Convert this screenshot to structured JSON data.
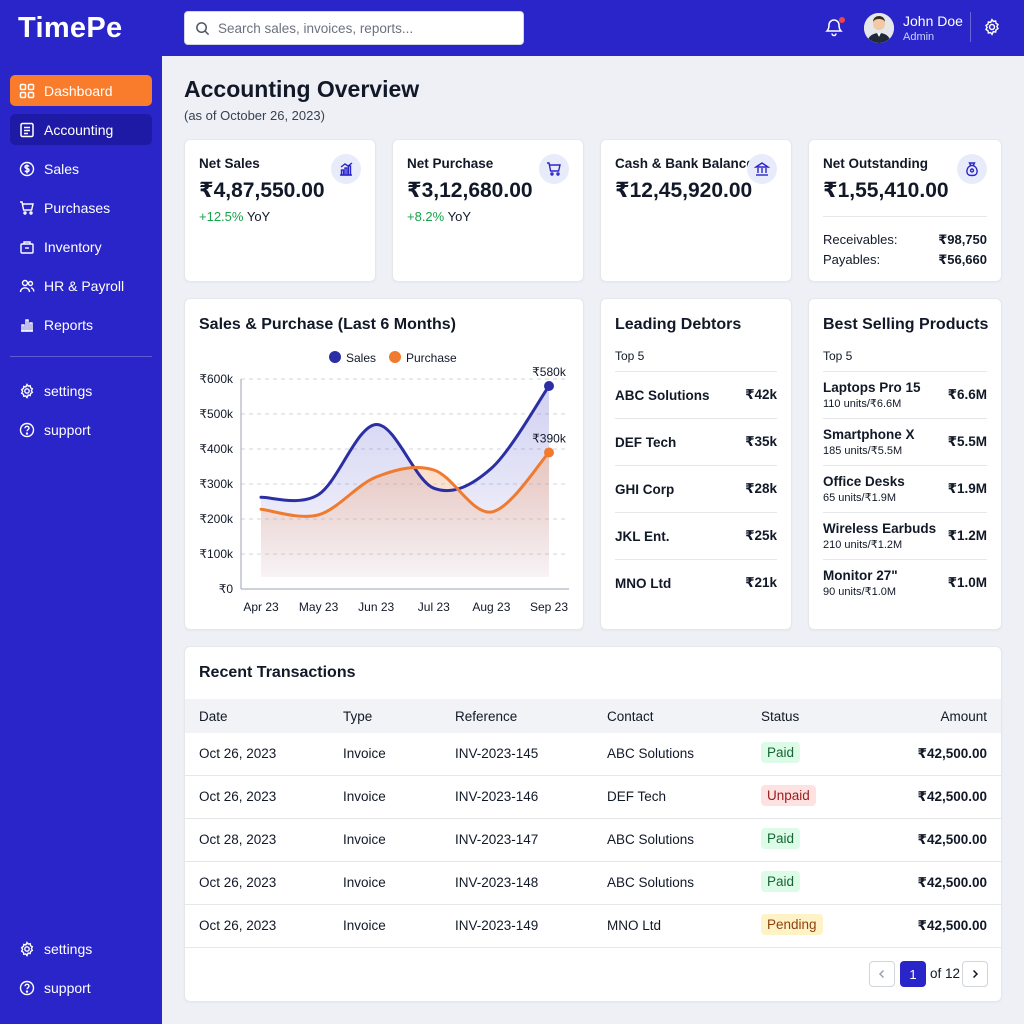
{
  "app": {
    "name": "TimePe"
  },
  "sidebar": {
    "items": [
      {
        "label": "Dashboard",
        "icon": "grid-icon"
      },
      {
        "label": "Accounting",
        "icon": "document-icon"
      },
      {
        "label": "Sales",
        "icon": "dollar-circle-icon"
      },
      {
        "label": "Purchases",
        "icon": "cart-icon"
      },
      {
        "label": "Inventory",
        "icon": "box-icon"
      },
      {
        "label": "HR & Payroll",
        "icon": "users-icon"
      },
      {
        "label": "Reports",
        "icon": "bar-chart-icon"
      }
    ],
    "secondary": [
      {
        "label": "settings",
        "icon": "gear-icon"
      },
      {
        "label": "support",
        "icon": "help-circle-icon"
      }
    ],
    "bottom": [
      {
        "label": "settings",
        "icon": "gear-icon"
      },
      {
        "label": "support",
        "icon": "help-circle-icon"
      }
    ]
  },
  "header": {
    "search_placeholder": "Search sales, invoices, reports...",
    "user": {
      "name": "John Doe",
      "role": "Admin"
    }
  },
  "page": {
    "title": "Accounting Overview",
    "subtitle": "(as of October 26, 2023)"
  },
  "stats": {
    "net_sales": {
      "title": "Net Sales",
      "value": "₹4,87,550.00",
      "delta": "+12.5%",
      "delta_suffix": "YoY"
    },
    "net_purchase": {
      "title": "Net Purchase",
      "value": "₹3,12,680.00",
      "delta": "+8.2%",
      "delta_suffix": "YoY"
    },
    "cash_bank": {
      "title": "Cash & Bank Balance",
      "value": "₹12,45,920.00"
    },
    "net_outstanding": {
      "title": "Net Outstanding",
      "value": "₹1,55,410.00",
      "receivables_label": "Receivables:",
      "receivables_value": "₹98,750",
      "payables_label": "Payables:",
      "payables_value": "₹56,660"
    }
  },
  "chart_panel": {
    "title": "Sales & Purchase (Last 6 Months)"
  },
  "chart_data": {
    "type": "line",
    "title": "Sales & Purchase (Last 6 Months)",
    "categories": [
      "Apr 23",
      "May 23",
      "Jun 23",
      "Jul 23",
      "Aug 23",
      "Sep 23"
    ],
    "series": [
      {
        "name": "Sales",
        "color": "#2b2fa3",
        "values": [
          262,
          270,
          470,
          288,
          345,
          580
        ]
      },
      {
        "name": "Purchase",
        "color": "#f07a2e",
        "values": [
          228,
          212,
          320,
          340,
          220,
          390
        ]
      }
    ],
    "y_ticks": [
      "₹0",
      "₹100k",
      "₹200k",
      "₹300k",
      "₹400k",
      "₹500k",
      "₹600k"
    ],
    "ylim": [
      0,
      600
    ],
    "units": "k",
    "end_labels": [
      "₹580k",
      "₹390k"
    ],
    "legend_position": "top",
    "grid": true
  },
  "debtors": {
    "title": "Leading Debtors",
    "subtitle": "Top 5",
    "rows": [
      {
        "name": "ABC Solutions",
        "value": "₹42k"
      },
      {
        "name": "DEF Tech",
        "value": "₹35k"
      },
      {
        "name": "GHI Corp",
        "value": "₹28k"
      },
      {
        "name": "JKL Ent.",
        "value": "₹25k"
      },
      {
        "name": "MNO Ltd",
        "value": "₹21k"
      }
    ]
  },
  "products": {
    "title": "Best Selling Products",
    "subtitle": "Top 5",
    "rows": [
      {
        "name": "Laptops Pro 15",
        "sub": "110 units/₹6.6M",
        "value": "₹6.6M"
      },
      {
        "name": "Smartphone X",
        "sub": "185 units/₹5.5M",
        "value": "₹5.5M"
      },
      {
        "name": "Office Desks",
        "sub": "65 units/₹1.9M",
        "value": "₹1.9M"
      },
      {
        "name": "Wireless Earbuds",
        "sub": "210 units/₹1.2M",
        "value": "₹1.2M"
      },
      {
        "name": "Monitor 27\"",
        "sub": "90 units/₹1.0M",
        "value": "₹1.0M"
      }
    ]
  },
  "transactions": {
    "title": "Recent Transactions",
    "columns": [
      "Date",
      "Type",
      "Reference",
      "Contact",
      "Status",
      "Amount"
    ],
    "rows": [
      {
        "date": "Oct 26, 2023",
        "type": "Invoice",
        "reference": "INV-2023-145",
        "contact": "ABC Solutions",
        "status": "Paid",
        "amount": "₹42,500.00"
      },
      {
        "date": "Oct 26, 2023",
        "type": "Invoice",
        "reference": "INV-2023-146",
        "contact": "DEF Tech",
        "status": "Unpaid",
        "amount": "₹42,500.00"
      },
      {
        "date": "Oct 28, 2023",
        "type": "Invoice",
        "reference": "INV-2023-147",
        "contact": "ABC Solutions",
        "status": "Paid",
        "amount": "₹42,500.00"
      },
      {
        "date": "Oct 26, 2023",
        "type": "Invoice",
        "reference": "INV-2023-148",
        "contact": "ABC Solutions",
        "status": "Paid",
        "amount": "₹42,500.00"
      },
      {
        "date": "Oct 26, 2023",
        "type": "Invoice",
        "reference": "INV-2023-149",
        "contact": "MNO Ltd",
        "status": "Pending",
        "amount": "₹42,500.00"
      }
    ],
    "pagination": {
      "current": "1",
      "of_label": "of 12"
    }
  },
  "colors": {
    "brand": "#2a25c9",
    "accent_orange": "#f97c2c",
    "active_blue": "#1f1aa6",
    "positive": "#16a34a"
  }
}
